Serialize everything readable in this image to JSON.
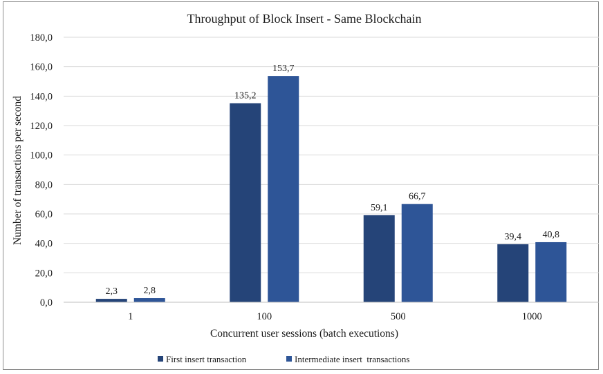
{
  "chart_data": {
    "type": "bar",
    "title": "Throughput of Block Insert - Same Blockchain",
    "xlabel": "Concurrent user sessions (batch executions)",
    "ylabel": "Number of transactions per second",
    "categories": [
      "1",
      "100",
      "500",
      "1000"
    ],
    "series": [
      {
        "name": "First insert transaction",
        "values": [
          2.3,
          135.2,
          59.1,
          39.4
        ],
        "labels": [
          "2,3",
          "135,2",
          "59,1",
          "39,4"
        ],
        "color": "#254478"
      },
      {
        "name": "Intermediate insert  transactions",
        "values": [
          2.8,
          153.7,
          66.7,
          40.8
        ],
        "labels": [
          "2,8",
          "153,7",
          "66,7",
          "40,8"
        ],
        "color": "#2e5597"
      }
    ],
    "ylim": [
      0,
      180
    ],
    "yticks": [
      "0,0",
      "20,0",
      "40,0",
      "60,0",
      "80,0",
      "100,0",
      "120,0",
      "140,0",
      "160,0",
      "180,0"
    ],
    "grid": true,
    "legend": "bottom-center"
  }
}
